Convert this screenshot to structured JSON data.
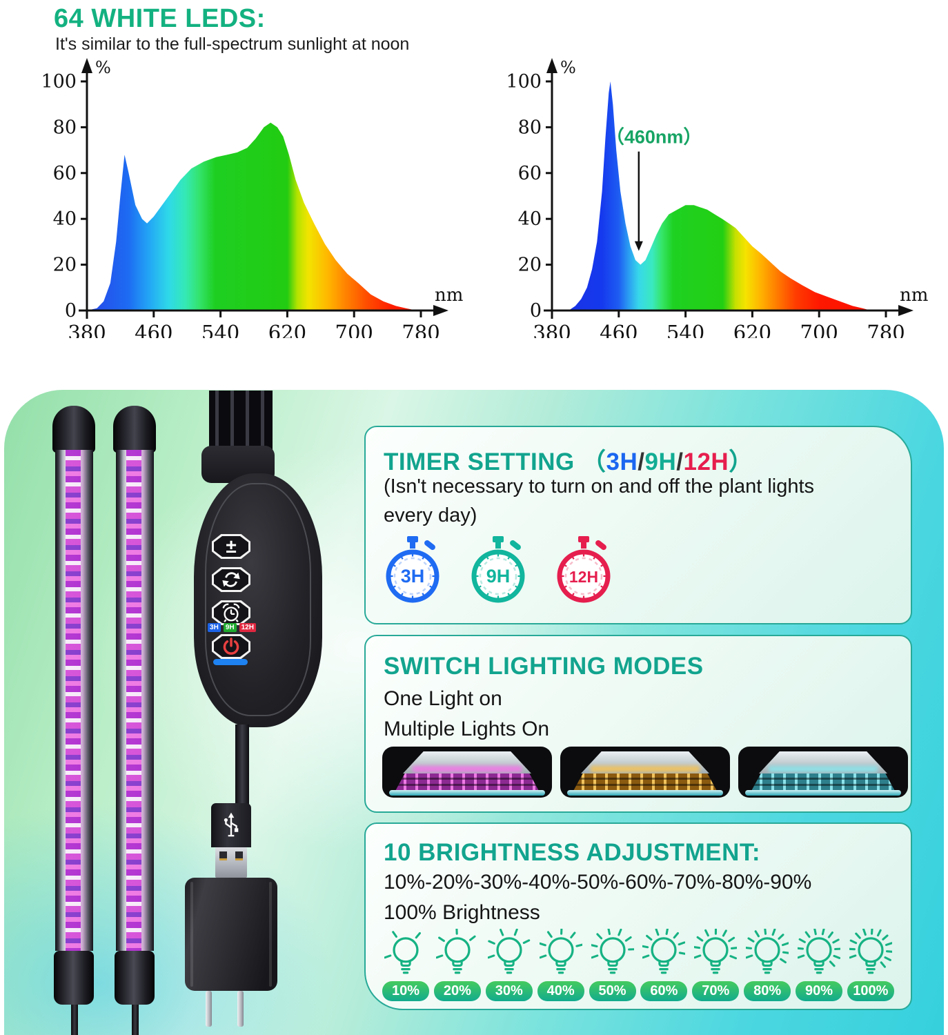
{
  "header": {
    "title": "64 WHITE LEDS:",
    "subtitle": "It's similar to the full-spectrum sunlight at noon",
    "title_color": "#13b180"
  },
  "chart_data": [
    {
      "type": "area",
      "title": "white-led-full-spectrum",
      "xlabel": "nm",
      "ylabel": "%",
      "xlim": [
        380,
        780
      ],
      "ylim": [
        0,
        100
      ],
      "x_ticks": [
        380,
        460,
        540,
        620,
        700,
        780
      ],
      "y_ticks": [
        0,
        20,
        40,
        60,
        80,
        100
      ],
      "grid": false,
      "points": [
        [
          380,
          0
        ],
        [
          392,
          1
        ],
        [
          400,
          4
        ],
        [
          408,
          12
        ],
        [
          415,
          30
        ],
        [
          420,
          50
        ],
        [
          425,
          68
        ],
        [
          430,
          60
        ],
        [
          438,
          46
        ],
        [
          446,
          40
        ],
        [
          452,
          38
        ],
        [
          460,
          41
        ],
        [
          470,
          46
        ],
        [
          480,
          51
        ],
        [
          492,
          57
        ],
        [
          505,
          62
        ],
        [
          520,
          65
        ],
        [
          535,
          67
        ],
        [
          548,
          68
        ],
        [
          560,
          69
        ],
        [
          572,
          71
        ],
        [
          582,
          75
        ],
        [
          592,
          80
        ],
        [
          600,
          82
        ],
        [
          608,
          80
        ],
        [
          615,
          76
        ],
        [
          622,
          68
        ],
        [
          630,
          57
        ],
        [
          640,
          47
        ],
        [
          652,
          38
        ],
        [
          665,
          29
        ],
        [
          678,
          22
        ],
        [
          692,
          16
        ],
        [
          705,
          12
        ],
        [
          720,
          7
        ],
        [
          735,
          4
        ],
        [
          750,
          2
        ],
        [
          762,
          1
        ],
        [
          775,
          0
        ]
      ],
      "gradient": [
        [
          380,
          "#2746ea"
        ],
        [
          430,
          "#1d6cf2"
        ],
        [
          455,
          "#23a8f5"
        ],
        [
          478,
          "#2fd9e8"
        ],
        [
          498,
          "#35e9b5"
        ],
        [
          515,
          "#33e36a"
        ],
        [
          533,
          "#1ecf22"
        ],
        [
          620,
          "#22cc11"
        ],
        [
          632,
          "#b5e300"
        ],
        [
          645,
          "#f2e400"
        ],
        [
          668,
          "#ffb800"
        ],
        [
          690,
          "#ff8300"
        ],
        [
          715,
          "#ff4d00"
        ],
        [
          745,
          "#ff1e00"
        ],
        [
          780,
          "#ff1400"
        ]
      ],
      "annotation": null
    },
    {
      "type": "area",
      "title": "grow-light-spectrum-460nm",
      "xlabel": "nm",
      "ylabel": "%",
      "xlim": [
        380,
        780
      ],
      "ylim": [
        0,
        100
      ],
      "x_ticks": [
        380,
        460,
        540,
        620,
        700,
        780
      ],
      "y_ticks": [
        0,
        20,
        40,
        60,
        80,
        100
      ],
      "grid": false,
      "points": [
        [
          380,
          0
        ],
        [
          400,
          0
        ],
        [
          408,
          2
        ],
        [
          415,
          5
        ],
        [
          422,
          10
        ],
        [
          428,
          18
        ],
        [
          434,
          30
        ],
        [
          440,
          52
        ],
        [
          444,
          75
        ],
        [
          448,
          95
        ],
        [
          450,
          100
        ],
        [
          453,
          90
        ],
        [
          457,
          70
        ],
        [
          462,
          52
        ],
        [
          468,
          38
        ],
        [
          474,
          28
        ],
        [
          480,
          22
        ],
        [
          486,
          20
        ],
        [
          492,
          22
        ],
        [
          498,
          27
        ],
        [
          505,
          33
        ],
        [
          512,
          38
        ],
        [
          520,
          42
        ],
        [
          530,
          44
        ],
        [
          540,
          46
        ],
        [
          550,
          46
        ],
        [
          558,
          45
        ],
        [
          566,
          44
        ],
        [
          575,
          42
        ],
        [
          584,
          40
        ],
        [
          592,
          38
        ],
        [
          600,
          36
        ],
        [
          610,
          32
        ],
        [
          620,
          28
        ],
        [
          630,
          25
        ],
        [
          642,
          21
        ],
        [
          654,
          17
        ],
        [
          666,
          14
        ],
        [
          680,
          11
        ],
        [
          695,
          8
        ],
        [
          710,
          6
        ],
        [
          725,
          4
        ],
        [
          740,
          2
        ],
        [
          752,
          1
        ],
        [
          762,
          0
        ]
      ],
      "gradient": [
        [
          380,
          "#1c2fe0"
        ],
        [
          440,
          "#1539ee"
        ],
        [
          460,
          "#1e5df2"
        ],
        [
          472,
          "#2b9ef2"
        ],
        [
          484,
          "#37d8ea"
        ],
        [
          500,
          "#3ae9c0"
        ],
        [
          512,
          "#35e566"
        ],
        [
          525,
          "#1ed122"
        ],
        [
          585,
          "#23cf12"
        ],
        [
          600,
          "#c8e000"
        ],
        [
          612,
          "#f6e300"
        ],
        [
          630,
          "#ffb300"
        ],
        [
          650,
          "#ff7a00"
        ],
        [
          672,
          "#ff3c00"
        ],
        [
          700,
          "#ff1800"
        ],
        [
          780,
          "#fa0f00"
        ]
      ],
      "annotation": {
        "text": "（460nm）",
        "color": "#17a464",
        "label_nm": 502,
        "label_pct": 73,
        "arrow_nm": 484,
        "arrow_tip_pct": 26
      }
    }
  ],
  "cards": {
    "timer": {
      "title": "TIMER SETTING",
      "paren_open": "（",
      "opt1": "3H",
      "sep1": "/",
      "opt2": "9H",
      "sep2": "/",
      "opt3": "12H",
      "paren_close": "）",
      "desc1": "(Isn't necessary to turn on and off the plant lights",
      "desc2": "every day)",
      "timers": [
        {
          "label": "3H",
          "color": "#1f6bf2"
        },
        {
          "label": "9H",
          "color": "#12b59d"
        },
        {
          "label": "12H",
          "color": "#e51e4e"
        }
      ]
    },
    "modes": {
      "title": "SWITCH LIGHTING MODES",
      "line1": "One Light on",
      "line2": "Multiple Lights On",
      "photos": [
        {
          "name": "mode-photo-pink",
          "glow": "#ef7ae6",
          "glow_dark": "#8c2a92"
        },
        {
          "name": "mode-photo-warm",
          "glow": "#f2c35c",
          "glow_dark": "#8a5a10"
        },
        {
          "name": "mode-photo-cool",
          "glow": "#8ce2ea",
          "glow_dark": "#2e7f8c"
        }
      ]
    },
    "brightness": {
      "title": "10 BRIGHTNESS ADJUSTMENT:",
      "line1": "10%-20%-30%-40%-50%-60%-70%-80%-90%",
      "line2": "100% Brightness",
      "accent": "#16b283",
      "levels": [
        "10%",
        "20%",
        "30%",
        "40%",
        "50%",
        "60%",
        "70%",
        "80%",
        "90%",
        "100%"
      ]
    }
  },
  "device": {
    "chips": [
      {
        "label": "3H",
        "bg": "#1c63e8"
      },
      {
        "label": "9H",
        "bg": "#1faa30"
      },
      {
        "label": "12H",
        "bg": "#e02840"
      }
    ],
    "plus_minus_glyph": "±",
    "power_color": "#e84040",
    "indicator_bar_color": "#1e82f0"
  }
}
